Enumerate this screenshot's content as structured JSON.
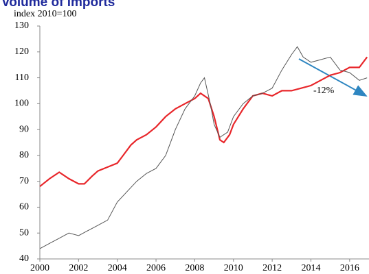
{
  "chart_data": {
    "type": "line",
    "title": "Volume of imports",
    "subtitle": "index 2010=100",
    "xlim": [
      2000,
      2017
    ],
    "xticks": [
      2000,
      2002,
      2004,
      2006,
      2008,
      2010,
      2012,
      2014,
      2016
    ],
    "ylim": [
      40,
      130
    ],
    "yticks": [
      40,
      50,
      60,
      70,
      80,
      90,
      100,
      110,
      120,
      130
    ],
    "grid": false,
    "annotation": "-12%",
    "series": [
      {
        "color": "#e8262a",
        "x": [
          2000,
          2000.5,
          2001,
          2001.5,
          2002,
          2002.3,
          2002.7,
          2003,
          2003.5,
          2004,
          2004.3,
          2004.7,
          2005,
          2005.5,
          2006,
          2006.5,
          2007,
          2007.5,
          2008,
          2008.3,
          2008.7,
          2009,
          2009.3,
          2009.5,
          2009.8,
          2010,
          2010.5,
          2011,
          2011.5,
          2012,
          2012.5,
          2013,
          2013.5,
          2014,
          2014.5,
          2015,
          2015.5,
          2016,
          2016.5,
          2016.9
        ],
        "values": [
          68,
          71,
          73.5,
          71,
          69,
          69,
          72,
          74,
          75.5,
          77,
          80,
          84,
          86,
          88,
          91,
          95,
          98,
          100,
          102,
          104,
          102,
          95,
          86,
          85,
          88,
          92,
          98,
          103,
          104,
          103,
          105,
          105,
          106,
          107,
          109,
          111,
          112,
          114,
          114,
          118
        ]
      },
      {
        "color": "#555555",
        "x": [
          2000,
          2000.5,
          2001,
          2001.5,
          2002,
          2002.5,
          2003,
          2003.5,
          2004,
          2004.5,
          2005,
          2005.5,
          2006,
          2006.5,
          2007,
          2007.5,
          2008,
          2008.3,
          2008.5,
          2008.8,
          2009,
          2009.3,
          2009.7,
          2010,
          2010.5,
          2011,
          2011.5,
          2012,
          2012.5,
          2013,
          2013.3,
          2013.6,
          2014,
          2014.5,
          2015,
          2015.5,
          2016,
          2016.5,
          2016.9
        ],
        "values": [
          44,
          46,
          48,
          50,
          49,
          51,
          53,
          55,
          62,
          66,
          70,
          73,
          75,
          80,
          90,
          98,
          103,
          108,
          110,
          100,
          92,
          87,
          89,
          95,
          100,
          103,
          104,
          106,
          113,
          119,
          122,
          118,
          116,
          117,
          118,
          113,
          112,
          109,
          110
        ]
      }
    ]
  }
}
